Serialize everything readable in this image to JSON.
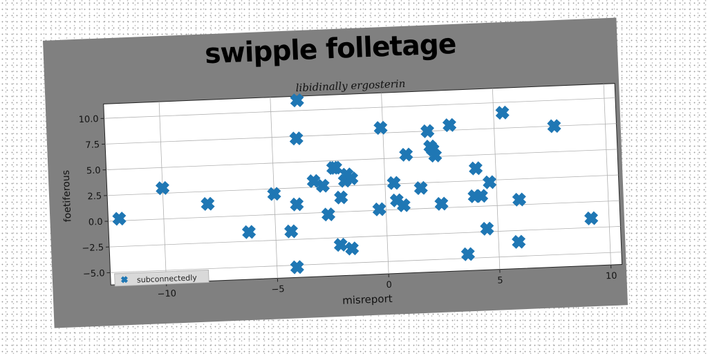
{
  "figure_title": "swipple folletage",
  "chart_data": {
    "type": "scatter",
    "title": "swipple folletage",
    "subtitle": "libidinally ergosterin",
    "xlabel": "misreport",
    "ylabel": "foetiferous",
    "xlim": [
      -12.5,
      10.5
    ],
    "ylim": [
      -6.2,
      11.4
    ],
    "xticks": [
      -10,
      -5,
      0,
      5,
      10
    ],
    "xtick_labels": [
      "−10",
      "−5",
      "0",
      "5",
      "10"
    ],
    "yticks": [
      -5.0,
      -2.5,
      0.0,
      2.5,
      5.0,
      7.5,
      10.0
    ],
    "ytick_labels": [
      "−5.0",
      "−2.5",
      "0.0",
      "2.5",
      "5.0",
      "7.5",
      "10.0"
    ],
    "grid": true,
    "legend_position": "bottom-left",
    "marker": "X",
    "color": "#1f77b4",
    "series": [
      {
        "name": "subconnectedly",
        "x": [
          -12.0,
          -10.0,
          -8.0,
          -6.2,
          -5.0,
          -4.0,
          -3.9,
          -3.8,
          -4.3,
          -4.1,
          -3.2,
          -2.8,
          -2.6,
          -2.3,
          -2.1,
          -2.0,
          -1.8,
          -1.7,
          -1.6,
          -1.5,
          -2.2,
          -0.3,
          -0.1,
          0.4,
          0.5,
          0.8,
          1.0,
          1.6,
          2.0,
          2.1,
          2.2,
          2.3,
          2.5,
          3.0,
          3.6,
          4.0,
          4.1,
          4.3,
          4.5,
          4.7,
          5.4,
          5.9,
          6.0,
          7.7,
          9.2
        ],
        "y": [
          0.2,
          3.0,
          1.3,
          -1.6,
          2.0,
          0.9,
          7.3,
          11.0,
          -1.7,
          -5.2,
          3.1,
          2.6,
          -0.2,
          4.3,
          -3.2,
          1.4,
          3.0,
          3.6,
          -3.6,
          3.2,
          4.3,
          0.1,
          8.0,
          2.6,
          0.9,
          0.4,
          5.3,
          2.0,
          7.5,
          6.0,
          5.7,
          5.1,
          0.4,
          8.0,
          -4.6,
          1.0,
          3.7,
          1.0,
          -2.2,
          2.3,
          9.0,
          -3.6,
          0.5,
          7.5,
          -1.6
        ]
      }
    ]
  }
}
